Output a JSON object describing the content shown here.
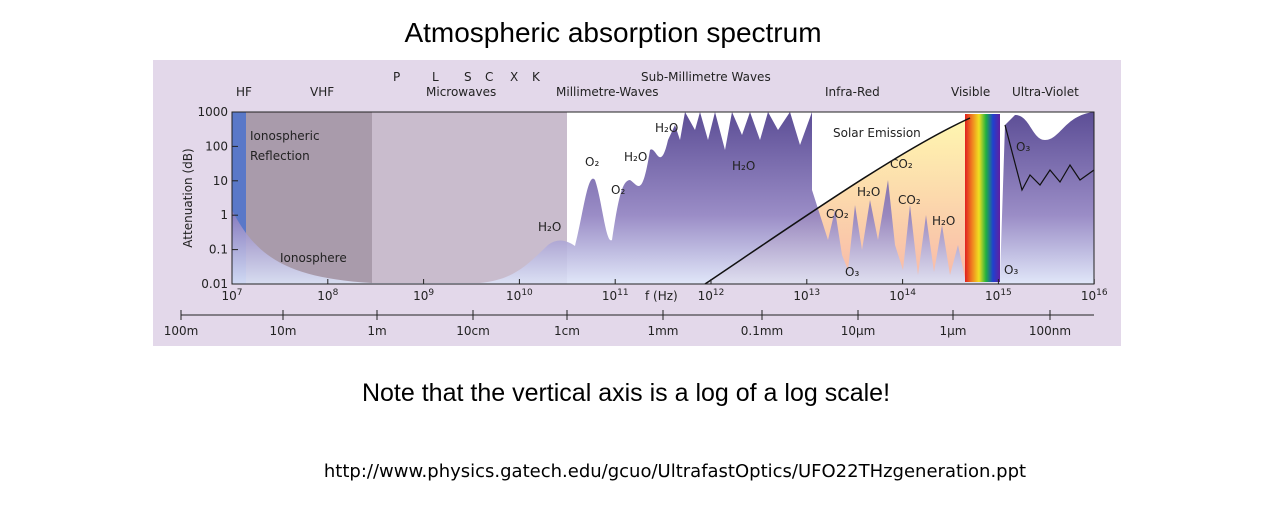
{
  "title": "Atmospheric absorption spectrum",
  "figure": {
    "bands": [
      "HF",
      "VHF",
      "P",
      "L",
      "S",
      "C",
      "X",
      "K",
      "Microwaves",
      "Sub-Millimetre Waves",
      "Millimetre-Waves",
      "Infra-Red",
      "Visible",
      "Ultra-Violet"
    ],
    "y_axis_label": "Attenuation (dB)",
    "yticks": [
      "1000",
      "100",
      "10",
      "1",
      "0.1",
      "0.01"
    ],
    "freq_axis_label": "f (Hz)",
    "freq_ticks": [
      {
        "base": "10",
        "exponent": "7"
      },
      {
        "base": "10",
        "exponent": "8"
      },
      {
        "base": "10",
        "exponent": "9"
      },
      {
        "base": "10",
        "exponent": "10"
      },
      {
        "base": "10",
        "exponent": "11"
      },
      {
        "base": "10",
        "exponent": "12"
      },
      {
        "base": "10",
        "exponent": "13"
      },
      {
        "base": "10",
        "exponent": "14"
      },
      {
        "base": "10",
        "exponent": "15"
      },
      {
        "base": "10",
        "exponent": "16"
      }
    ],
    "wavelength_ticks": [
      "100m",
      "10m",
      "1m",
      "10cm",
      "1cm",
      "1mm",
      "0.1mm",
      "10µm",
      "1µm",
      "100nm"
    ],
    "annotations": [
      "Ionospheric",
      "Reflection",
      "Ionosphere",
      "Solar Emission",
      "H₂O",
      "O₂",
      "O₂",
      "H₂O",
      "H₂O",
      "H₂O",
      "CO₂",
      "H₂O",
      "CO₂",
      "CO₂",
      "H₂O",
      "O₃",
      "O₃",
      "O₃"
    ]
  },
  "note": "Note that the vertical axis is a log of a log scale!",
  "source": "http://www.physics.gatech.edu/gcuo/UltrafastOptics/UFO22THzgeneration.ppt"
}
